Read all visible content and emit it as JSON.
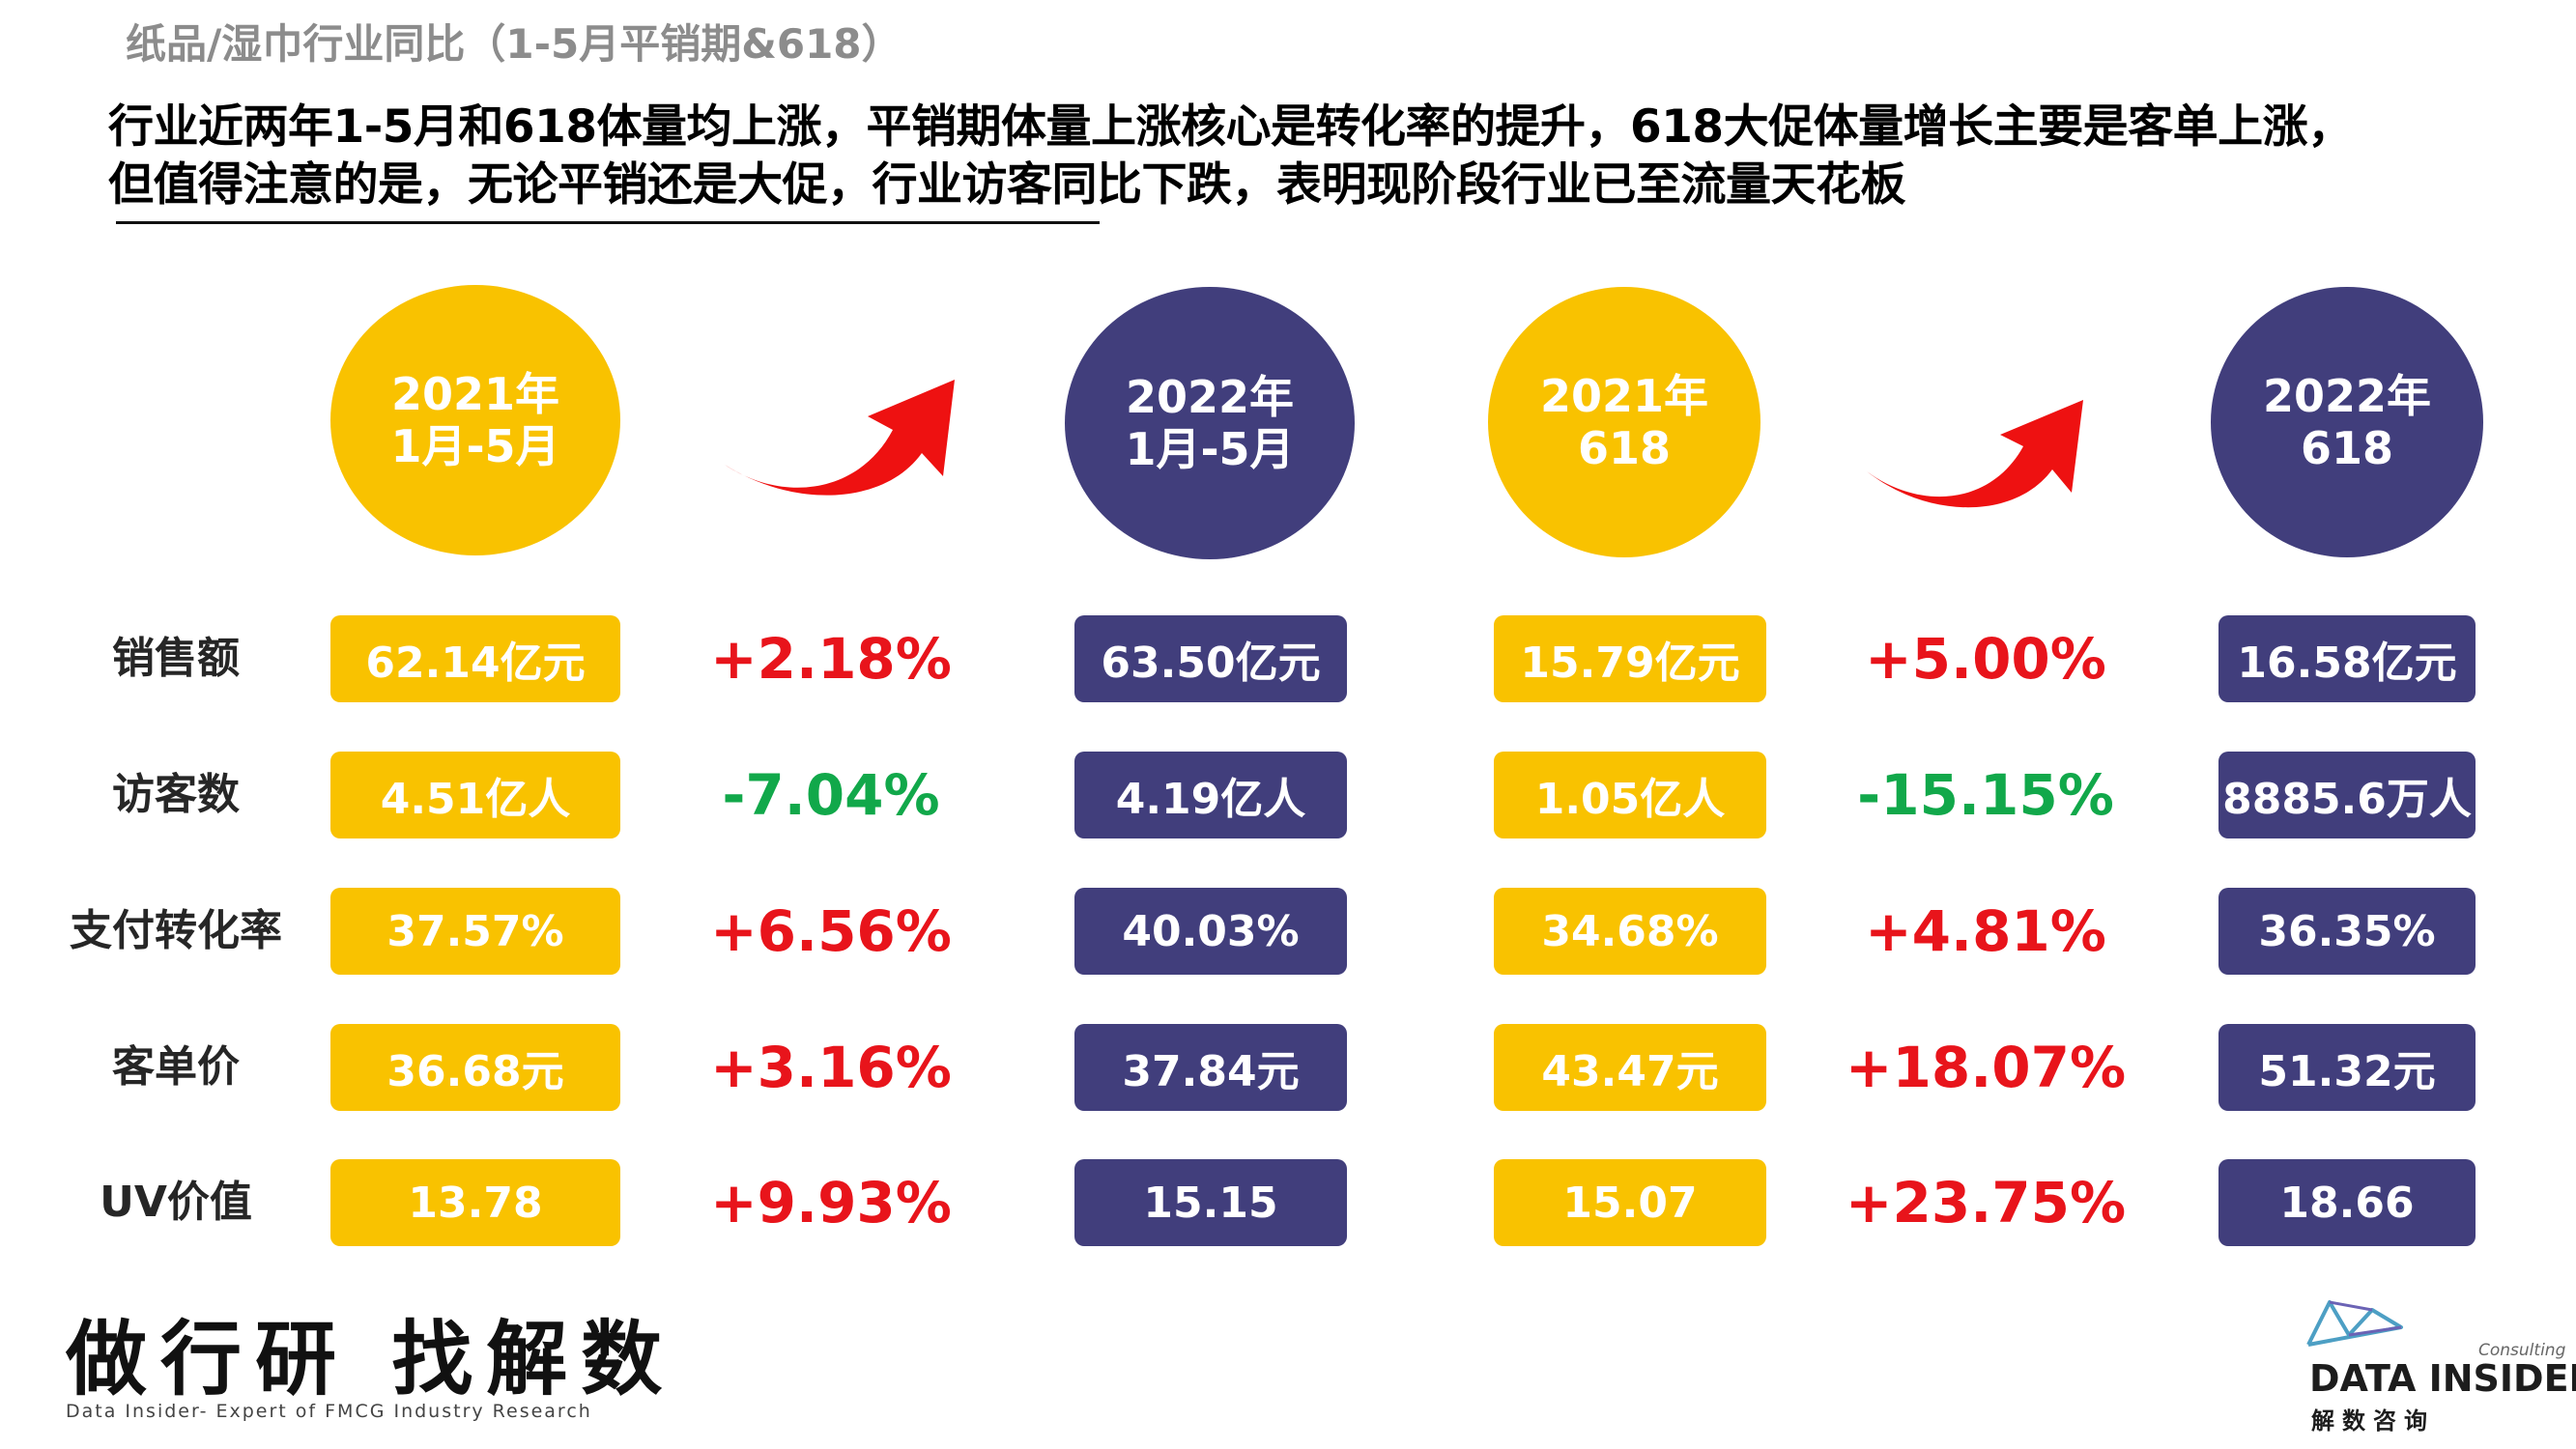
{
  "header": {
    "title": "纸品/湿巾行业同比（1-5月平销期&618）",
    "headline_line1": "行业近两年1-5月和618体量均上涨，平销期体量上涨核心是转化率的提升，618大促体量增长主要是客单上涨，",
    "headline_line2": "但值得注意的是，无论平销还是大促，行业访客同比下跌，表明现阶段行业已至流量天花板"
  },
  "colors": {
    "gold": "#f9c200",
    "navy": "#413e7c",
    "increase": "#e8141b",
    "decrease": "#11a84a",
    "arrow": "#ee1111"
  },
  "row_labels": [
    "销售额",
    "访客数",
    "支付转化率",
    "客单价",
    "UV价值"
  ],
  "groups": [
    {
      "left": {
        "line1": "2021年",
        "line2": "1月-5月",
        "values": [
          "62.14亿元",
          "4.51亿人",
          "37.57%",
          "36.68元",
          "13.78"
        ]
      },
      "right": {
        "line1": "2022年",
        "line2": "1月-5月",
        "values": [
          "63.50亿元",
          "4.19亿人",
          "40.03%",
          "37.84元",
          "15.15"
        ]
      },
      "changes": [
        "+2.18%",
        "-7.04%",
        "+6.56%",
        "+3.16%",
        "+9.93%"
      ]
    },
    {
      "left": {
        "line1": "2021年",
        "line2": "618",
        "values": [
          "15.79亿元",
          "1.05亿人",
          "34.68%",
          "43.47元",
          "15.07"
        ]
      },
      "right": {
        "line1": "2022年",
        "line2": "618",
        "values": [
          "16.58亿元",
          "8885.6万人",
          "36.35%",
          "51.32元",
          "18.66"
        ]
      },
      "changes": [
        "+5.00%",
        "-15.15%",
        "+4.81%",
        "+18.07%",
        "+23.75%"
      ]
    }
  ],
  "icons": {
    "trend_arrow": "curved-up-arrow-icon",
    "logo": "data-insider-logo-icon"
  },
  "footer": {
    "slogan": "做行研 找解数",
    "tagline": "Data Insider- Expert of FMCG Industry Research",
    "logo_consulting": "Consulting",
    "logo_name": "DATA INSIDER",
    "logo_cn": "解数咨询"
  }
}
